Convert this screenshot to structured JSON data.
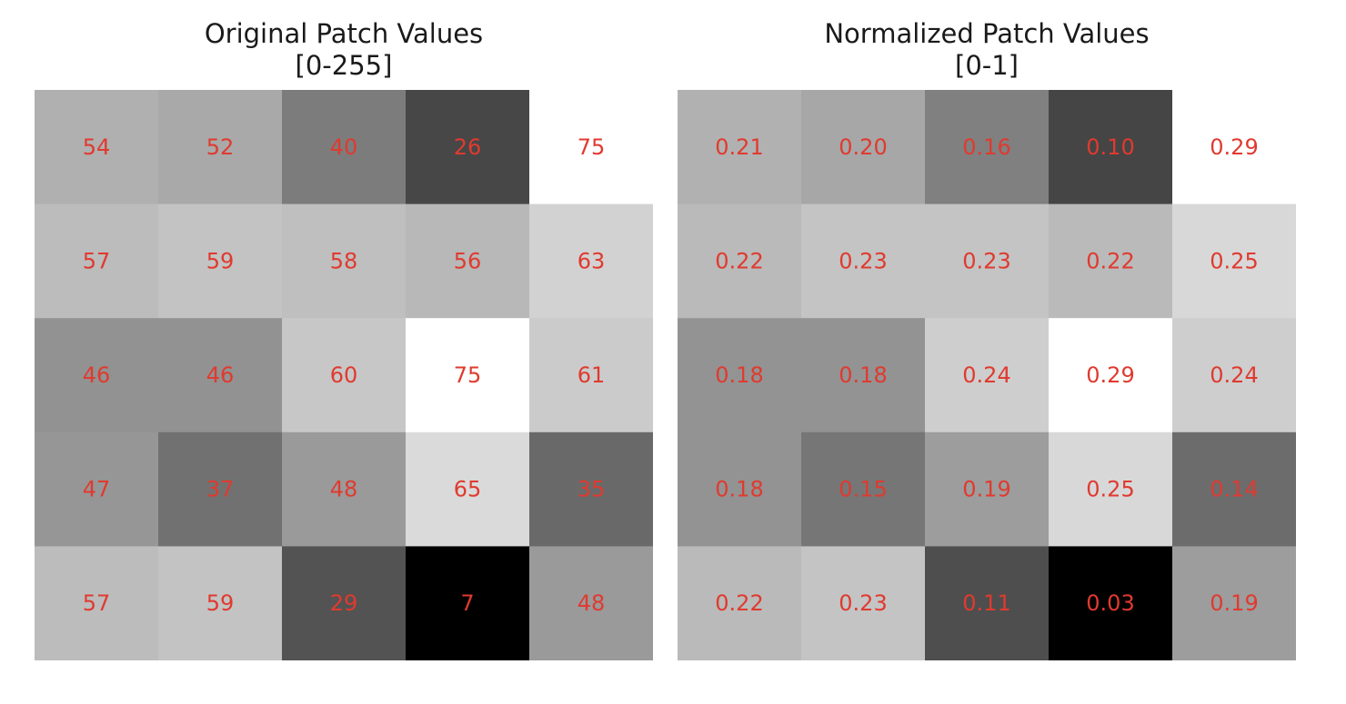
{
  "chart_data": [
    {
      "type": "heatmap",
      "title": "Original Patch Values",
      "subtitle": "[0-255]",
      "colormap": "gray",
      "label_color": "#e03a2f",
      "value_range": [
        7,
        75
      ],
      "rows": [
        [
          "54",
          "52",
          "40",
          "26",
          "75"
        ],
        [
          "57",
          "59",
          "58",
          "56",
          "63"
        ],
        [
          "46",
          "46",
          "60",
          "75",
          "61"
        ],
        [
          "47",
          "37",
          "48",
          "65",
          "35"
        ],
        [
          "57",
          "59",
          "29",
          "7",
          "48"
        ]
      ]
    },
    {
      "type": "heatmap",
      "title": "Normalized Patch Values",
      "subtitle": "[0-1]",
      "colormap": "gray",
      "label_color": "#e03a2f",
      "value_range": [
        0.03,
        0.29
      ],
      "rows": [
        [
          "0.21",
          "0.20",
          "0.16",
          "0.10",
          "0.29"
        ],
        [
          "0.22",
          "0.23",
          "0.23",
          "0.22",
          "0.25"
        ],
        [
          "0.18",
          "0.18",
          "0.24",
          "0.29",
          "0.24"
        ],
        [
          "0.18",
          "0.15",
          "0.19",
          "0.25",
          "0.14"
        ],
        [
          "0.22",
          "0.23",
          "0.11",
          "0.03",
          "0.19"
        ]
      ]
    }
  ]
}
